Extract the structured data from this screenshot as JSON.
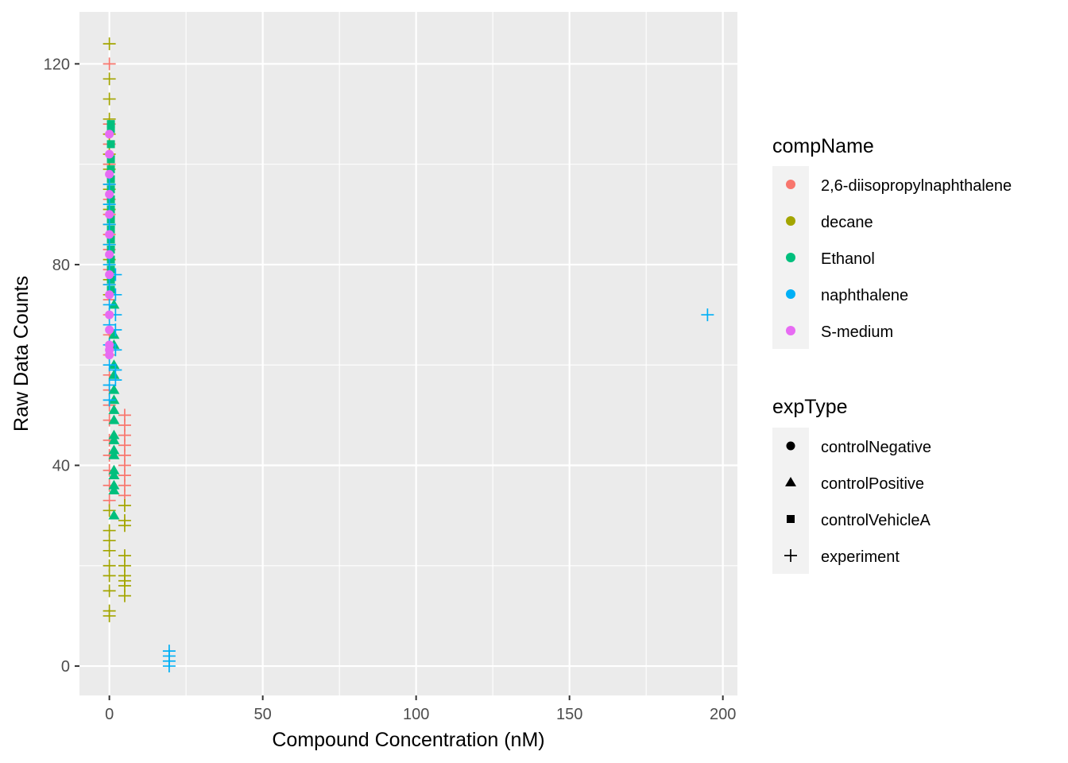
{
  "chart_data": {
    "type": "scatter",
    "xlabel": "Compound Concentration (nM)",
    "ylabel": "Raw Data Counts",
    "xlim": [
      -9.75,
      204.75
    ],
    "ylim": [
      -5.85,
      130.35
    ],
    "x_ticks": [
      0,
      50,
      100,
      150,
      200
    ],
    "y_ticks": [
      0,
      40,
      80,
      120
    ],
    "grid": true,
    "legend_position": "right",
    "colors": {
      "2,6-diisopropylnaphthalene": "#F8766D",
      "decane": "#A3A500",
      "Ethanol": "#00BF7D",
      "naphthalene": "#00B0F6",
      "S-medium": "#E76BF3"
    },
    "legends": [
      {
        "title": "compName",
        "kind": "color",
        "entries": [
          "2,6-diisopropylnaphthalene",
          "decane",
          "Ethanol",
          "naphthalene",
          "S-medium"
        ]
      },
      {
        "title": "expType",
        "kind": "shape",
        "entries": [
          {
            "label": "controlNegative",
            "shape": "circle"
          },
          {
            "label": "controlPositive",
            "shape": "triangle"
          },
          {
            "label": "controlVehicleA",
            "shape": "square"
          },
          {
            "label": "experiment",
            "shape": "plus"
          }
        ]
      }
    ],
    "series": [
      {
        "compName": "2,6-diisopropylnaphthalene",
        "expType": "experiment",
        "points": [
          [
            0,
            120
          ],
          [
            0,
            108
          ],
          [
            0,
            104
          ],
          [
            0,
            100
          ],
          [
            0,
            96
          ],
          [
            0,
            93
          ],
          [
            0,
            90
          ],
          [
            0,
            86
          ],
          [
            0,
            83
          ],
          [
            0,
            79
          ],
          [
            0,
            76
          ],
          [
            0,
            73
          ],
          [
            0,
            70
          ],
          [
            0,
            66
          ],
          [
            0,
            62
          ],
          [
            0,
            58
          ],
          [
            0,
            55
          ],
          [
            0,
            52
          ],
          [
            0,
            49
          ],
          [
            0,
            45
          ],
          [
            0,
            42
          ],
          [
            0,
            39
          ],
          [
            0,
            36
          ],
          [
            0,
            33
          ],
          [
            5,
            50
          ],
          [
            5,
            48
          ],
          [
            5,
            46
          ],
          [
            5,
            44
          ],
          [
            5,
            42
          ],
          [
            5,
            40
          ],
          [
            5,
            38
          ],
          [
            5,
            36
          ],
          [
            5,
            34
          ]
        ]
      },
      {
        "compName": "decane",
        "expType": "experiment",
        "points": [
          [
            0,
            124
          ],
          [
            0,
            117
          ],
          [
            0,
            113
          ],
          [
            0,
            109
          ],
          [
            0,
            106
          ],
          [
            0,
            102
          ],
          [
            0,
            99
          ],
          [
            0,
            95
          ],
          [
            0,
            91
          ],
          [
            0,
            88
          ],
          [
            0,
            84
          ],
          [
            0,
            81
          ],
          [
            0,
            77
          ],
          [
            0,
            74
          ],
          [
            0,
            31
          ],
          [
            0,
            27
          ],
          [
            0,
            25
          ],
          [
            0,
            23
          ],
          [
            0,
            20
          ],
          [
            0,
            18
          ],
          [
            0,
            15
          ],
          [
            0,
            11
          ],
          [
            0,
            10
          ],
          [
            5,
            32
          ],
          [
            5,
            29
          ],
          [
            5,
            28
          ],
          [
            5,
            22
          ],
          [
            5,
            20
          ],
          [
            5,
            18
          ],
          [
            5,
            17
          ],
          [
            5,
            16
          ],
          [
            5,
            14
          ]
        ]
      },
      {
        "compName": "Ethanol",
        "expType": "controlVehicleA",
        "points": [
          [
            0.5,
            108
          ],
          [
            0.5,
            107
          ],
          [
            0.5,
            104
          ],
          [
            0.5,
            101
          ],
          [
            0.5,
            99
          ],
          [
            0.5,
            97
          ],
          [
            0.5,
            95
          ],
          [
            0.5,
            93
          ],
          [
            0.5,
            91
          ],
          [
            0.5,
            89
          ],
          [
            0.5,
            87
          ],
          [
            0.5,
            85
          ],
          [
            0.5,
            83
          ],
          [
            0.5,
            81
          ],
          [
            0.5,
            79
          ],
          [
            0.5,
            77
          ],
          [
            0.5,
            75
          ]
        ]
      },
      {
        "compName": "Ethanol",
        "expType": "controlPositive",
        "points": [
          [
            1.5,
            72
          ],
          [
            1.5,
            66
          ],
          [
            1.5,
            64
          ],
          [
            1.5,
            60
          ],
          [
            1.5,
            58
          ],
          [
            1.5,
            55
          ],
          [
            1.5,
            53
          ],
          [
            1.5,
            51
          ],
          [
            1.5,
            49
          ],
          [
            1.5,
            46
          ],
          [
            1.5,
            45
          ],
          [
            1.5,
            43
          ],
          [
            1.5,
            42
          ],
          [
            1.5,
            39
          ],
          [
            1.5,
            38
          ],
          [
            1.5,
            36
          ],
          [
            1.5,
            35
          ],
          [
            1.5,
            30
          ]
        ]
      },
      {
        "compName": "naphthalene",
        "expType": "experiment",
        "points": [
          [
            0,
            96
          ],
          [
            0,
            92
          ],
          [
            0,
            88
          ],
          [
            0,
            84
          ],
          [
            0,
            80
          ],
          [
            0,
            76
          ],
          [
            0,
            72
          ],
          [
            0,
            68
          ],
          [
            0,
            64
          ],
          [
            0,
            60
          ],
          [
            0,
            56
          ],
          [
            0,
            53
          ],
          [
            2,
            78
          ],
          [
            2,
            74
          ],
          [
            2,
            70
          ],
          [
            2,
            67
          ],
          [
            2,
            63
          ],
          [
            2,
            59
          ],
          [
            2,
            57
          ],
          [
            19.5,
            3
          ],
          [
            19.5,
            2
          ],
          [
            19.5,
            1
          ],
          [
            19.5,
            0
          ],
          [
            195,
            70
          ]
        ]
      },
      {
        "compName": "S-medium",
        "expType": "controlNegative",
        "points": [
          [
            0,
            106
          ],
          [
            0,
            102
          ],
          [
            0,
            98
          ],
          [
            0,
            94
          ],
          [
            0,
            90
          ],
          [
            0,
            86
          ],
          [
            0,
            82
          ],
          [
            0,
            78
          ],
          [
            0,
            74
          ],
          [
            0,
            70
          ],
          [
            0,
            67
          ],
          [
            0,
            64
          ],
          [
            0,
            63
          ],
          [
            0,
            62
          ]
        ]
      }
    ]
  }
}
